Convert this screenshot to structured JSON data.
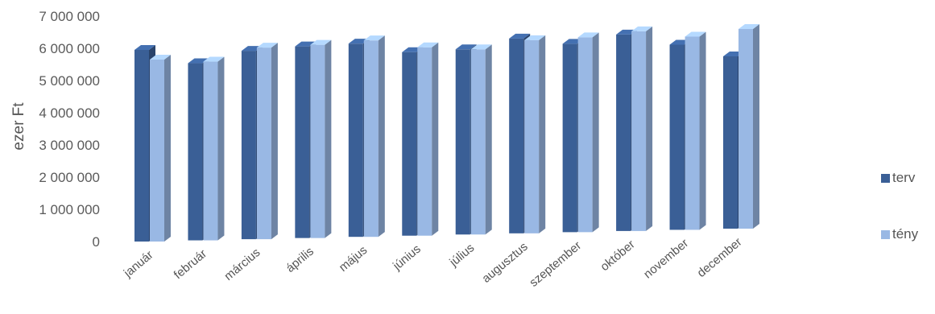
{
  "chart_data": {
    "type": "bar",
    "ylabel": "ezer Ft",
    "y_tick_labels": [
      "0",
      "1 000 000",
      "2 000 000",
      "3 000 000",
      "4 000 000",
      "5 000 000",
      "6 000 000",
      "7 000 000"
    ],
    "ylim": [
      0,
      7000000
    ],
    "categories": [
      "január",
      "február",
      "március",
      "április",
      "május",
      "június",
      "július",
      "augusztus",
      "szeptember",
      "október",
      "november",
      "december"
    ],
    "series": [
      {
        "name": "terv",
        "color": "#3a5f96",
        "values": [
          5950000,
          5500000,
          5850000,
          5950000,
          6000000,
          5700000,
          5750000,
          6050000,
          5850000,
          6100000,
          5750000,
          5350000
        ]
      },
      {
        "name": "tény",
        "color": "#99b8e4",
        "values": [
          5650000,
          5550000,
          5950000,
          6000000,
          6100000,
          5850000,
          5750000,
          6000000,
          6050000,
          6200000,
          6000000,
          6200000
        ]
      }
    ],
    "legend_position": "right",
    "style": "3d-clustered-column"
  }
}
